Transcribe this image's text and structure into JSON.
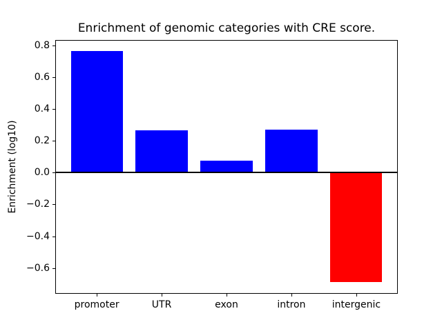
{
  "chart_data": {
    "type": "bar",
    "title": "Enrichment of genomic categories with CRE score.",
    "xlabel": "",
    "ylabel": "Enrichment (log10)",
    "categories": [
      "promoter",
      "UTR",
      "exon",
      "intron",
      "intergenic"
    ],
    "values": [
      0.765,
      0.266,
      0.074,
      0.272,
      -0.69
    ],
    "bar_colors": [
      "#0000ff",
      "#0000ff",
      "#0000ff",
      "#0000ff",
      "#ff0000"
    ],
    "positive_color": "#0000ff",
    "negative_color": "#ff0000",
    "bar_width_fraction": 0.8,
    "xlim": [
      -0.64,
      4.64
    ],
    "ylim": [
      -0.762,
      0.834
    ],
    "yticks": [
      0.8,
      0.6,
      0.4,
      0.2,
      0.0,
      -0.2,
      -0.4,
      -0.6
    ],
    "ytick_labels": [
      "0.8",
      "0.6",
      "0.4",
      "0.2",
      "0.0",
      "−0.2",
      "−0.4",
      "−0.6"
    ],
    "zero_line": true,
    "grid": false,
    "legend": null,
    "axis_color": "#000000",
    "background_color": "#ffffff"
  }
}
